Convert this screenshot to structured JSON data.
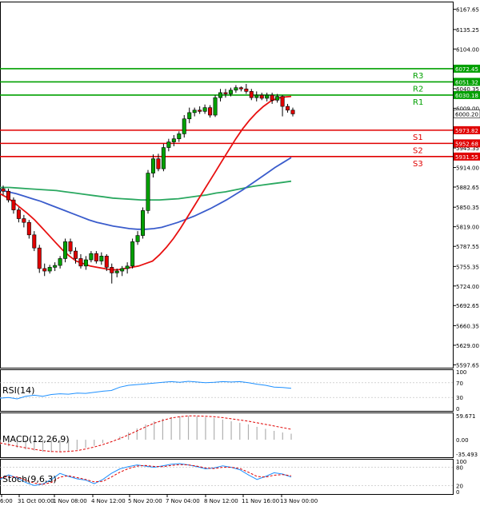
{
  "chart_data": {
    "type": "candlestick",
    "instrument_panel": {
      "price_ticks": [
        "6167.65",
        "6135.25",
        "6104.00",
        "6072.45",
        "6040.35",
        "6009.00",
        "5977.60",
        "5945.35",
        "5914.00",
        "5882.65",
        "5850.35",
        "5819.00",
        "5787.55",
        "5755.35",
        "5724.00",
        "5692.65",
        "5660.35",
        "5629.00",
        "5597.65"
      ],
      "ylim": [
        5593,
        6180
      ],
      "current_price": "6000.20",
      "levels": [
        {
          "name": "R3",
          "value": "6072.45",
          "color": "#00a000"
        },
        {
          "name": "R2",
          "value": "6051.32",
          "color": "#00a000"
        },
        {
          "name": "R1",
          "value": "6030.18",
          "color": "#00a000"
        },
        {
          "name": "S1",
          "value": "5973.82",
          "color": "#e00000"
        },
        {
          "name": "S2",
          "value": "5952.68",
          "color": "#e00000"
        },
        {
          "name": "S3",
          "value": "5931.55",
          "color": "#e00000"
        }
      ],
      "candles": [
        [
          5880,
          5885,
          5870,
          5876
        ],
        [
          5876,
          5880,
          5858,
          5862
        ],
        [
          5862,
          5866,
          5840,
          5846
        ],
        [
          5846,
          5850,
          5826,
          5832
        ],
        [
          5832,
          5838,
          5818,
          5826
        ],
        [
          5826,
          5830,
          5800,
          5806
        ],
        [
          5806,
          5812,
          5780,
          5785
        ],
        [
          5785,
          5790,
          5745,
          5752
        ],
        [
          5752,
          5760,
          5740,
          5748
        ],
        [
          5748,
          5758,
          5744,
          5754
        ],
        [
          5754,
          5762,
          5748,
          5757
        ],
        [
          5757,
          5772,
          5752,
          5768
        ],
        [
          5768,
          5800,
          5762,
          5795
        ],
        [
          5795,
          5800,
          5775,
          5780
        ],
        [
          5780,
          5786,
          5760,
          5768
        ],
        [
          5768,
          5775,
          5752,
          5756
        ],
        [
          5756,
          5772,
          5750,
          5766
        ],
        [
          5766,
          5780,
          5762,
          5776
        ],
        [
          5776,
          5780,
          5760,
          5764
        ],
        [
          5764,
          5778,
          5758,
          5772
        ],
        [
          5772,
          5775,
          5748,
          5754
        ],
        [
          5754,
          5760,
          5728,
          5745
        ],
        [
          5745,
          5752,
          5738,
          5748
        ],
        [
          5748,
          5756,
          5740,
          5752
        ],
        [
          5752,
          5762,
          5744,
          5756
        ],
        [
          5756,
          5800,
          5752,
          5795
        ],
        [
          5795,
          5812,
          5790,
          5805
        ],
        [
          5805,
          5850,
          5800,
          5845
        ],
        [
          5845,
          5910,
          5840,
          5905
        ],
        [
          5905,
          5935,
          5898,
          5928
        ],
        [
          5928,
          5936,
          5908,
          5912
        ],
        [
          5912,
          5952,
          5908,
          5946
        ],
        [
          5946,
          5960,
          5940,
          5955
        ],
        [
          5955,
          5966,
          5948,
          5960
        ],
        [
          5960,
          5972,
          5955,
          5968
        ],
        [
          5968,
          5998,
          5962,
          5992
        ],
        [
          5992,
          6010,
          5985,
          6002
        ],
        [
          6002,
          6010,
          5996,
          6006
        ],
        [
          6006,
          6012,
          6000,
          6004
        ],
        [
          6004,
          6015,
          6000,
          6010
        ],
        [
          6010,
          6014,
          5994,
          5998
        ],
        [
          5998,
          6030,
          5995,
          6026
        ],
        [
          6026,
          6040,
          6020,
          6034
        ],
        [
          6034,
          6040,
          6026,
          6032
        ],
        [
          6032,
          6042,
          6028,
          6038
        ],
        [
          6038,
          6046,
          6034,
          6042
        ],
        [
          6042,
          6044,
          6036,
          6040
        ],
        [
          6040,
          6048,
          6032,
          6036
        ],
        [
          6036,
          6040,
          6022,
          6026
        ],
        [
          6026,
          6036,
          6020,
          6030
        ],
        [
          6030,
          6034,
          6022,
          6025
        ],
        [
          6025,
          6034,
          6020,
          6030
        ],
        [
          6030,
          6034,
          6016,
          6022
        ],
        [
          6022,
          6032,
          6018,
          6028
        ],
        [
          6028,
          6030,
          5996,
          6012
        ],
        [
          6012,
          6016,
          6002,
          6006
        ],
        [
          6006,
          6010,
          5996,
          6000
        ]
      ],
      "ma_short": [
        5872,
        5866,
        5858,
        5849,
        5840,
        5830,
        5818,
        5806,
        5794,
        5782,
        5772,
        5764,
        5760,
        5756,
        5754,
        5752,
        5750,
        5750,
        5752,
        5754,
        5756,
        5760,
        5764,
        5774,
        5786,
        5800,
        5816,
        5834,
        5852,
        5870,
        5888,
        5906,
        5924,
        5942,
        5960,
        5976,
        5990,
        6002,
        6012,
        6020,
        6025,
        6027,
        6028
      ],
      "ma_mid": [
        5878,
        5875,
        5872,
        5868,
        5864,
        5860,
        5855,
        5850,
        5845,
        5840,
        5835,
        5830,
        5826,
        5823,
        5820,
        5818,
        5816,
        5815,
        5815,
        5816,
        5818,
        5822,
        5826,
        5831,
        5836,
        5842,
        5848,
        5855,
        5862,
        5870,
        5878,
        5887,
        5896,
        5905,
        5914,
        5922,
        5930
      ],
      "ma_long": [
        5882,
        5882,
        5881,
        5880,
        5879,
        5878,
        5877,
        5875,
        5873,
        5871,
        5869,
        5867,
        5865,
        5864,
        5863,
        5862,
        5862,
        5862,
        5863,
        5864,
        5866,
        5868,
        5870,
        5873,
        5875,
        5878,
        5881,
        5884,
        5886,
        5888,
        5890,
        5892
      ]
    },
    "x_tick_labels": [
      "6:00",
      "31 Oct 00:00",
      "1 Nov 08:00",
      "4 Nov 12:00",
      "5 Nov 20:00",
      "7 Nov 04:00",
      "8 Nov 12:00",
      "11 Nov 16:00",
      "13 Nov 00:00"
    ],
    "rsi_panel": {
      "label": "RSI(14)",
      "ticks": [
        "100",
        "70",
        "30",
        "0"
      ],
      "values": [
        28,
        30,
        26,
        33,
        36,
        33,
        38,
        40,
        39,
        42,
        41,
        44,
        47,
        49,
        58,
        63,
        65,
        67,
        69,
        71,
        73,
        71,
        74,
        72,
        70,
        71,
        73,
        72,
        73,
        70,
        66,
        63,
        58,
        57,
        55
      ]
    },
    "macd_panel": {
      "label": "MACD(12,26,9)",
      "ticks": [
        "59.671",
        "0.00",
        "-35.493"
      ],
      "histogram": [
        -12,
        -16,
        -20,
        -24,
        -27,
        -30,
        -31,
        -30,
        -28,
        -25,
        -20,
        -15,
        -8,
        0,
        8,
        18,
        28,
        38,
        46,
        52,
        56,
        58,
        59,
        58,
        56,
        54,
        50,
        46,
        42,
        38,
        32,
        27,
        22,
        18,
        15
      ],
      "signal": [
        -8,
        -12,
        -16,
        -20,
        -24,
        -27,
        -29,
        -30,
        -29,
        -27,
        -23,
        -18,
        -12,
        -5,
        3,
        12,
        22,
        32,
        41,
        48,
        54,
        57,
        59,
        59,
        58,
        57,
        55,
        52,
        49,
        46,
        42,
        38,
        34,
        30,
        26
      ]
    },
    "stoch_panel": {
      "label": "Stoch(9,6,3)",
      "ticks": [
        "100",
        "80",
        "20",
        "0"
      ],
      "k": [
        40,
        55,
        45,
        30,
        20,
        25,
        40,
        60,
        50,
        42,
        38,
        26,
        40,
        60,
        75,
        82,
        88,
        84,
        80,
        85,
        90,
        92,
        88,
        82,
        75,
        78,
        85,
        80,
        72,
        55,
        40,
        50,
        62,
        58,
        48
      ],
      "d": [
        45,
        50,
        48,
        38,
        28,
        24,
        30,
        48,
        52,
        46,
        40,
        32,
        34,
        48,
        64,
        76,
        84,
        86,
        83,
        82,
        86,
        89,
        88,
        84,
        78,
        76,
        80,
        80,
        76,
        64,
        50,
        48,
        54,
        56,
        52
      ]
    },
    "colors": {
      "bull": "#00a000",
      "bear": "#e00000",
      "ma_short": "#e81010",
      "ma_mid": "#3a5ccc",
      "ma_long": "#2aa860",
      "rsi": "#1e90ff",
      "stoch_k": "#1e90ff",
      "stoch_d": "#e00000"
    }
  }
}
